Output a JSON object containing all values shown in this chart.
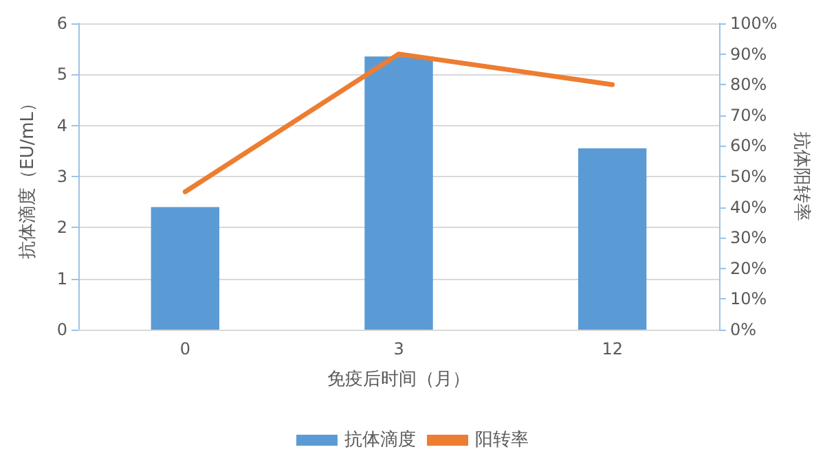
{
  "chart_data": {
    "type": "bar",
    "xlabel": "免疫后时间（月）",
    "ylabel": "抗体滴度（EU/mL）",
    "y2label": "抗体阳转率",
    "categories": [
      "0",
      "3",
      "12"
    ],
    "series": [
      {
        "name": "抗体滴度",
        "color": "#5b9bd5",
        "values": [
          2.4,
          5.35,
          3.55
        ]
      },
      {
        "name": "阳转率",
        "type": "line",
        "axis": "y2",
        "color": "#ed7d31",
        "values": [
          45,
          90,
          80
        ]
      }
    ],
    "ylim": [
      0,
      6
    ],
    "yticks": [
      0,
      1,
      2,
      3,
      4,
      5,
      6
    ],
    "y2lim": [
      0,
      100
    ],
    "y2ticks": [
      {
        "value": 0,
        "label": "0%"
      },
      {
        "value": 10,
        "label": "10%"
      },
      {
        "value": 20,
        "label": "20%"
      },
      {
        "value": 30,
        "label": "30%"
      },
      {
        "value": 40,
        "label": "40%"
      },
      {
        "value": 50,
        "label": "50%"
      },
      {
        "value": 60,
        "label": "60%"
      },
      {
        "value": 70,
        "label": "70%"
      },
      {
        "value": 80,
        "label": "80%"
      },
      {
        "value": 90,
        "label": "90%"
      },
      {
        "value": 100,
        "label": "100%"
      }
    ],
    "grid": "y",
    "legend": "bottom",
    "marker": "none"
  }
}
